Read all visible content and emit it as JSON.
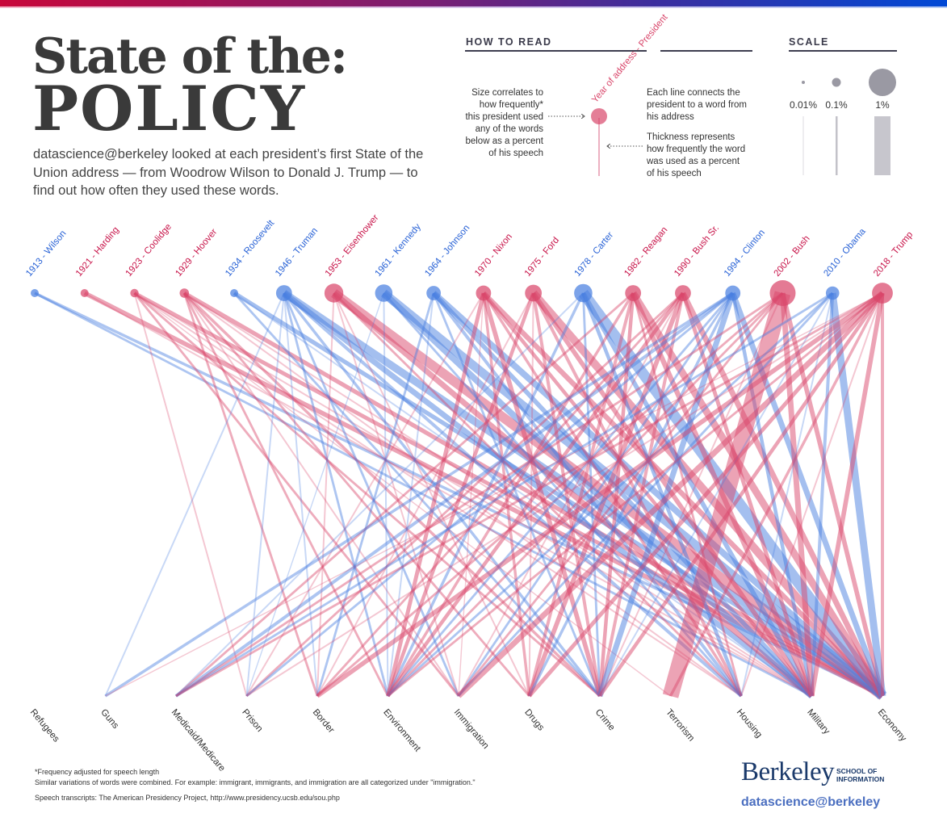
{
  "header": {
    "title_line1": "State of the:",
    "title_line2": "POLICY",
    "intro": "datascience@berkeley looked at each president’s first State of the Union address — from Woodrow Wilson to Donald J. Trump — to find out how often they used these words."
  },
  "how_to_read": {
    "title": "HOW TO READ",
    "node_label": "Year of address - President",
    "size_note": [
      "Size correlates to",
      "how frequently*",
      "this president used",
      "any of the words",
      "below as a percent",
      "of his speech"
    ],
    "line_note": [
      "Each line connects the",
      "president to a word from",
      "his address"
    ],
    "thickness_note": [
      "Thickness represents",
      "how frequently the word",
      "was used as a percent",
      "of his speech"
    ]
  },
  "scale": {
    "title": "SCALE",
    "items": [
      {
        "label": "0.01%",
        "value": 0.01
      },
      {
        "label": "0.1%",
        "value": 0.1
      },
      {
        "label": "1%",
        "value": 1
      }
    ]
  },
  "colors": {
    "republican": "#d9476b",
    "democrat": "#4a7fe0",
    "title": "#3a3a3a",
    "brand": "#1b3a6b",
    "brand_light": "#4b6fc0"
  },
  "chart_data": {
    "type": "bipartite-network",
    "title": "State of the: POLICY",
    "presidents": [
      {
        "label": "1913 - Wilson",
        "party": "D",
        "total": 0.05
      },
      {
        "label": "1921 - Harding",
        "party": "R",
        "total": 0.09
      },
      {
        "label": "1923 - Coolidge",
        "party": "R",
        "total": 0.14
      },
      {
        "label": "1929 - Hoover",
        "party": "R",
        "total": 0.17
      },
      {
        "label": "1934 - Roosevelt",
        "party": "D",
        "total": 0.1
      },
      {
        "label": "1946 - Truman",
        "party": "D",
        "total": 0.5
      },
      {
        "label": "1953 - Eisenhower",
        "party": "R",
        "total": 0.7
      },
      {
        "label": "1961 - Kennedy",
        "party": "D",
        "total": 0.6
      },
      {
        "label": "1964 - Johnson",
        "party": "D",
        "total": 0.4
      },
      {
        "label": "1970 - Nixon",
        "party": "R",
        "total": 0.45
      },
      {
        "label": "1975 - Ford",
        "party": "R",
        "total": 0.55
      },
      {
        "label": "1978 - Carter",
        "party": "D",
        "total": 0.65
      },
      {
        "label": "1982 - Reagan",
        "party": "R",
        "total": 0.5
      },
      {
        "label": "1990 - Bush Sr.",
        "party": "R",
        "total": 0.5
      },
      {
        "label": "1994 - Clinton",
        "party": "D",
        "total": 0.45
      },
      {
        "label": "2002 - Bush",
        "party": "R",
        "total": 1.3
      },
      {
        "label": "2010 - Obama",
        "party": "D",
        "total": 0.35
      },
      {
        "label": "2018 - Trump",
        "party": "R",
        "total": 0.85
      }
    ],
    "words": [
      "Refugees",
      "Guns",
      "Medicaid/Medicare",
      "Prison",
      "Border",
      "Environment",
      "Immigration",
      "Drugs",
      "Crime",
      "Terrorism",
      "Housing",
      "Military",
      "Economy"
    ],
    "links": [
      {
        "p": 0,
        "w": 11,
        "v": 0.02
      },
      {
        "p": 0,
        "w": 12,
        "v": 0.03
      },
      {
        "p": 1,
        "w": 12,
        "v": 0.08
      },
      {
        "p": 1,
        "w": 11,
        "v": 0.01
      },
      {
        "p": 2,
        "w": 12,
        "v": 0.06
      },
      {
        "p": 2,
        "w": 3,
        "v": 0.01
      },
      {
        "p": 2,
        "w": 8,
        "v": 0.02
      },
      {
        "p": 2,
        "w": 6,
        "v": 0.02
      },
      {
        "p": 2,
        "w": 11,
        "v": 0.01
      },
      {
        "p": 2,
        "w": 10,
        "v": 0.01
      },
      {
        "p": 2,
        "w": 9,
        "v": 0.005
      },
      {
        "p": 3,
        "w": 12,
        "v": 0.07
      },
      {
        "p": 3,
        "w": 4,
        "v": 0.02
      },
      {
        "p": 3,
        "w": 5,
        "v": 0.02
      },
      {
        "p": 3,
        "w": 8,
        "v": 0.03
      },
      {
        "p": 3,
        "w": 7,
        "v": 0.02
      },
      {
        "p": 3,
        "w": 6,
        "v": 0.01
      },
      {
        "p": 3,
        "w": 11,
        "v": 0.01
      },
      {
        "p": 3,
        "w": 10,
        "v": 0.01
      },
      {
        "p": 4,
        "w": 12,
        "v": 0.07
      },
      {
        "p": 4,
        "w": 8,
        "v": 0.02
      },
      {
        "p": 4,
        "w": 11,
        "v": 0.01
      },
      {
        "p": 5,
        "w": 12,
        "v": 0.22
      },
      {
        "p": 5,
        "w": 11,
        "v": 0.12
      },
      {
        "p": 5,
        "w": 1,
        "v": 0.01
      },
      {
        "p": 5,
        "w": 3,
        "v": 0.01
      },
      {
        "p": 5,
        "w": 5,
        "v": 0.02
      },
      {
        "p": 5,
        "w": 6,
        "v": 0.02
      },
      {
        "p": 5,
        "w": 8,
        "v": 0.03
      },
      {
        "p": 5,
        "w": 10,
        "v": 0.04
      },
      {
        "p": 5,
        "w": 4,
        "v": 0.01
      },
      {
        "p": 6,
        "w": 12,
        "v": 0.35
      },
      {
        "p": 6,
        "w": 11,
        "v": 0.12
      },
      {
        "p": 6,
        "w": 4,
        "v": 0.01
      },
      {
        "p": 6,
        "w": 7,
        "v": 0.01
      },
      {
        "p": 6,
        "w": 10,
        "v": 0.02
      },
      {
        "p": 6,
        "w": 6,
        "v": 0.01
      },
      {
        "p": 7,
        "w": 12,
        "v": 0.3
      },
      {
        "p": 7,
        "w": 11,
        "v": 0.15
      },
      {
        "p": 7,
        "w": 5,
        "v": 0.01
      },
      {
        "p": 7,
        "w": 10,
        "v": 0.02
      },
      {
        "p": 7,
        "w": 3,
        "v": 0.005
      },
      {
        "p": 8,
        "w": 12,
        "v": 0.15
      },
      {
        "p": 8,
        "w": 11,
        "v": 0.08
      },
      {
        "p": 8,
        "w": 4,
        "v": 0.02
      },
      {
        "p": 8,
        "w": 10,
        "v": 0.04
      },
      {
        "p": 8,
        "w": 5,
        "v": 0.01
      },
      {
        "p": 8,
        "w": 8,
        "v": 0.02
      },
      {
        "p": 9,
        "w": 12,
        "v": 0.1
      },
      {
        "p": 9,
        "w": 5,
        "v": 0.06
      },
      {
        "p": 9,
        "w": 8,
        "v": 0.08
      },
      {
        "p": 9,
        "w": 7,
        "v": 0.03
      },
      {
        "p": 9,
        "w": 11,
        "v": 0.05
      },
      {
        "p": 9,
        "w": 10,
        "v": 0.03
      },
      {
        "p": 9,
        "w": 3,
        "v": 0.01
      },
      {
        "p": 9,
        "w": 6,
        "v": 0.005
      },
      {
        "p": 10,
        "w": 12,
        "v": 0.25
      },
      {
        "p": 10,
        "w": 11,
        "v": 0.08
      },
      {
        "p": 10,
        "w": 5,
        "v": 0.05
      },
      {
        "p": 10,
        "w": 8,
        "v": 0.04
      },
      {
        "p": 10,
        "w": 10,
        "v": 0.04
      },
      {
        "p": 10,
        "w": 4,
        "v": 0.01
      },
      {
        "p": 10,
        "w": 7,
        "v": 0.01
      },
      {
        "p": 11,
        "w": 12,
        "v": 0.45
      },
      {
        "p": 11,
        "w": 11,
        "v": 0.08
      },
      {
        "p": 11,
        "w": 2,
        "v": 0.01
      },
      {
        "p": 11,
        "w": 10,
        "v": 0.05
      },
      {
        "p": 11,
        "w": 5,
        "v": 0.03
      },
      {
        "p": 11,
        "w": 8,
        "v": 0.02
      },
      {
        "p": 12,
        "w": 12,
        "v": 0.2
      },
      {
        "p": 12,
        "w": 11,
        "v": 0.1
      },
      {
        "p": 12,
        "w": 7,
        "v": 0.04
      },
      {
        "p": 12,
        "w": 8,
        "v": 0.05
      },
      {
        "p": 12,
        "w": 5,
        "v": 0.03
      },
      {
        "p": 12,
        "w": 2,
        "v": 0.02
      },
      {
        "p": 12,
        "w": 10,
        "v": 0.02
      },
      {
        "p": 13,
        "w": 12,
        "v": 0.12
      },
      {
        "p": 13,
        "w": 11,
        "v": 0.06
      },
      {
        "p": 13,
        "w": 7,
        "v": 0.08
      },
      {
        "p": 13,
        "w": 5,
        "v": 0.05
      },
      {
        "p": 13,
        "w": 8,
        "v": 0.04
      },
      {
        "p": 13,
        "w": 4,
        "v": 0.02
      },
      {
        "p": 13,
        "w": 3,
        "v": 0.02
      },
      {
        "p": 13,
        "w": 6,
        "v": 0.01
      },
      {
        "p": 14,
        "w": 12,
        "v": 0.12
      },
      {
        "p": 14,
        "w": 8,
        "v": 0.12
      },
      {
        "p": 14,
        "w": 11,
        "v": 0.05
      },
      {
        "p": 14,
        "w": 1,
        "v": 0.03
      },
      {
        "p": 14,
        "w": 2,
        "v": 0.04
      },
      {
        "p": 14,
        "w": 7,
        "v": 0.03
      },
      {
        "p": 14,
        "w": 3,
        "v": 0.02
      },
      {
        "p": 14,
        "w": 6,
        "v": 0.02
      },
      {
        "p": 14,
        "w": 5,
        "v": 0.02
      },
      {
        "p": 15,
        "w": 9,
        "v": 1.0
      },
      {
        "p": 15,
        "w": 11,
        "v": 0.12
      },
      {
        "p": 15,
        "w": 12,
        "v": 0.08
      },
      {
        "p": 15,
        "w": 6,
        "v": 0.02
      },
      {
        "p": 15,
        "w": 5,
        "v": 0.02
      },
      {
        "p": 15,
        "w": 2,
        "v": 0.02
      },
      {
        "p": 15,
        "w": 4,
        "v": 0.02
      },
      {
        "p": 15,
        "w": 8,
        "v": 0.01
      },
      {
        "p": 16,
        "w": 12,
        "v": 0.2
      },
      {
        "p": 16,
        "w": 11,
        "v": 0.04
      },
      {
        "p": 16,
        "w": 2,
        "v": 0.02
      },
      {
        "p": 16,
        "w": 5,
        "v": 0.02
      },
      {
        "p": 16,
        "w": 6,
        "v": 0.02
      },
      {
        "p": 16,
        "w": 10,
        "v": 0.01
      },
      {
        "p": 16,
        "w": 8,
        "v": 0.01
      },
      {
        "p": 17,
        "w": 6,
        "v": 0.12
      },
      {
        "p": 17,
        "w": 4,
        "v": 0.08
      },
      {
        "p": 17,
        "w": 11,
        "v": 0.08
      },
      {
        "p": 17,
        "w": 12,
        "v": 0.04
      },
      {
        "p": 17,
        "w": 7,
        "v": 0.06
      },
      {
        "p": 17,
        "w": 8,
        "v": 0.05
      },
      {
        "p": 17,
        "w": 9,
        "v": 0.03
      },
      {
        "p": 17,
        "w": 5,
        "v": 0.02
      },
      {
        "p": 17,
        "w": 2,
        "v": 0.02
      },
      {
        "p": 17,
        "w": 3,
        "v": 0.01
      },
      {
        "p": 17,
        "w": 1,
        "v": 0.005
      },
      {
        "p": 17,
        "w": 10,
        "v": 0.01
      }
    ]
  },
  "footer": {
    "note1": "*Frequency adjusted for speech length",
    "note2": "Similar variations of words were combined. For example: immigrant, immigrants, and immigration are all categorized under \"immigration.\"",
    "note3": "Speech transcripts: The American Presidency Project, http://www.presidency.ucsb.edu/sou.php",
    "logo_main": "Berkeley",
    "logo_sub1": "SCHOOL OF",
    "logo_sub2": "INFORMATION",
    "brand": "datascience@berkeley"
  }
}
